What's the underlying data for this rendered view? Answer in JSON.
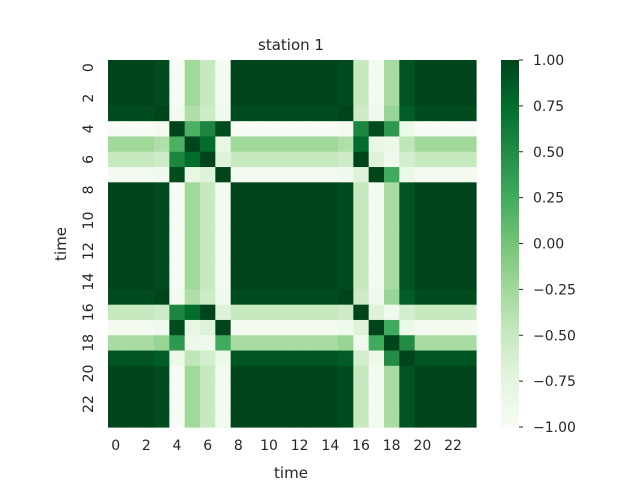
{
  "chart_data": {
    "type": "heatmap",
    "title": "station 1",
    "xlabel": "time",
    "ylabel": "time",
    "x_ticks": [
      "0",
      "2",
      "4",
      "6",
      "8",
      "10",
      "12",
      "14",
      "16",
      "18",
      "20",
      "22"
    ],
    "y_ticks": [
      "0",
      "2",
      "4",
      "6",
      "8",
      "10",
      "12",
      "14",
      "16",
      "18",
      "20",
      "22"
    ],
    "colorbar": {
      "min": -1.0,
      "max": 1.0,
      "ticks": [
        "1.00",
        "0.75",
        "0.50",
        "0.25",
        "0.00",
        "−0.25",
        "−0.50",
        "−0.75",
        "−1.00"
      ],
      "tick_values": [
        1.0,
        0.75,
        0.5,
        0.25,
        0.0,
        -0.25,
        -0.5,
        -0.75,
        -1.0
      ]
    },
    "colormap": "Greens",
    "colors": [
      "#f7fcf5",
      "#e5f5e0",
      "#c7e9c0",
      "#a1d99b",
      "#74c476",
      "#41ab5d",
      "#238b45",
      "#006d2c",
      "#00441b"
    ],
    "n": 24,
    "groups": [
      0,
      0,
      0,
      1,
      2,
      3,
      4,
      5,
      0,
      0,
      0,
      0,
      0,
      0,
      0,
      1,
      4,
      5,
      6,
      7,
      0,
      0,
      0,
      0
    ],
    "group_correlation": [
      [
        1.0,
        0.95,
        -1.0,
        -0.25,
        -0.5,
        -0.95,
        -0.3,
        0.9
      ],
      [
        0.95,
        1.0,
        -0.95,
        -0.35,
        -0.55,
        -0.9,
        -0.2,
        0.85
      ],
      [
        -1.0,
        -0.95,
        1.0,
        0.2,
        0.55,
        0.95,
        0.4,
        -0.85
      ],
      [
        -0.25,
        -0.35,
        0.2,
        1.0,
        0.75,
        -0.8,
        -0.85,
        -0.45
      ],
      [
        -0.5,
        -0.55,
        0.55,
        0.75,
        1.0,
        -0.7,
        -0.9,
        -0.6
      ],
      [
        -0.95,
        -0.9,
        0.95,
        -0.8,
        -0.7,
        1.0,
        0.25,
        -0.85
      ],
      [
        -0.3,
        -0.2,
        0.4,
        -0.85,
        -0.9,
        0.25,
        1.0,
        0.5
      ],
      [
        0.9,
        0.85,
        -0.85,
        -0.45,
        -0.6,
        -0.85,
        0.5,
        1.0
      ]
    ]
  }
}
